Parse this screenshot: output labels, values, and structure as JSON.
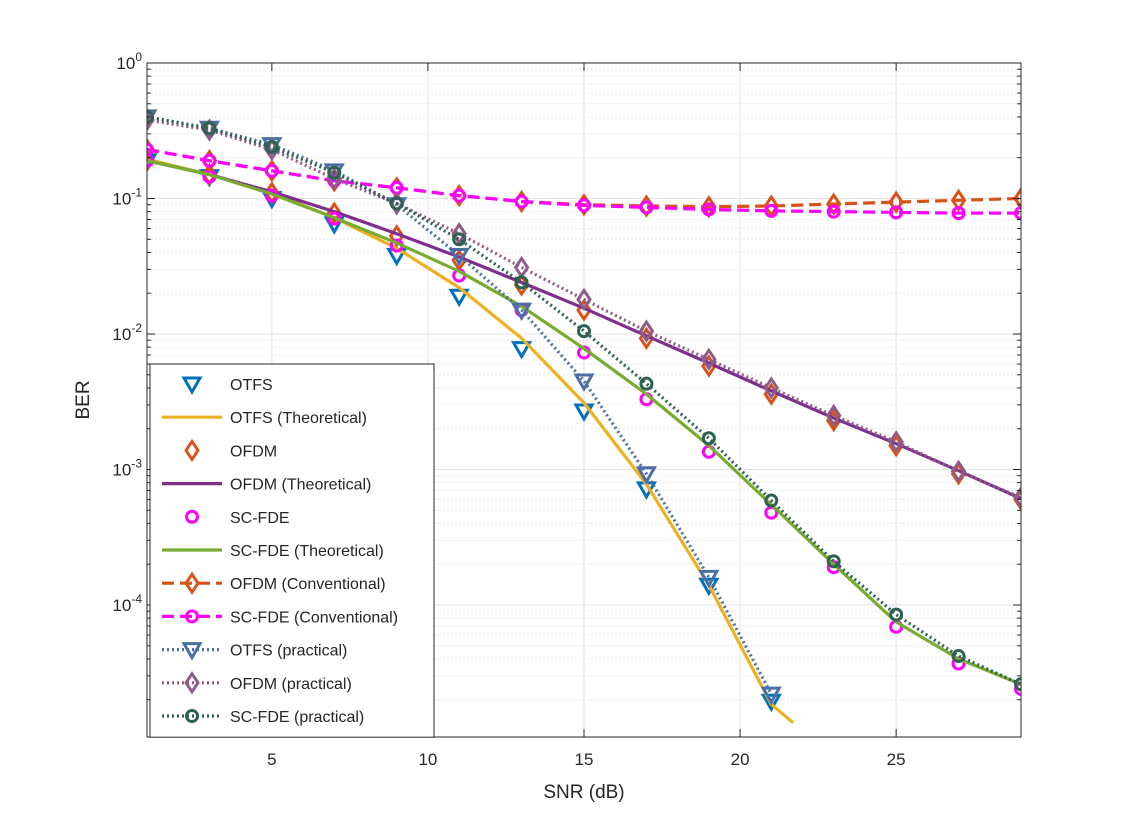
{
  "chart_data": {
    "type": "line",
    "title": "",
    "xlabel": "SNR (dB)",
    "ylabel": "BER",
    "yscale": "log",
    "xlim": [
      1,
      29
    ],
    "ylim_exponent": [
      -5,
      0
    ],
    "ylim": [
      1.35e-05,
      1
    ],
    "grid": true,
    "minor_grid": true,
    "legend_position": "bottom-left",
    "x_ticks": [
      5,
      10,
      15,
      20,
      25
    ],
    "y_ticks": [
      {
        "value": 1,
        "base": "10",
        "exp": "0"
      },
      {
        "value": 0.1,
        "base": "10",
        "exp": "-1"
      },
      {
        "value": 0.01,
        "base": "10",
        "exp": "-2"
      },
      {
        "value": 0.001,
        "base": "10",
        "exp": "-3"
      },
      {
        "value": 0.0001,
        "base": "10",
        "exp": "-4"
      }
    ],
    "series": [
      {
        "name": "OTFS",
        "color": "#0072BD",
        "line": "none",
        "marker": "triangle-down",
        "x": [
          1,
          3,
          5,
          7,
          9,
          11,
          13,
          15,
          17,
          19,
          21
        ],
        "y": [
          0.19,
          0.145,
          0.1,
          0.065,
          0.038,
          0.019,
          0.0078,
          0.0027,
          0.00072,
          0.00014,
          1.95e-05
        ]
      },
      {
        "name": "OTFS (Theoretical)",
        "color": "#EDB120",
        "line": "solid",
        "marker": "none",
        "x": [
          1,
          3,
          5,
          7,
          9,
          11,
          13,
          15,
          17,
          19,
          21,
          21.7
        ],
        "y": [
          0.195,
          0.15,
          0.11,
          0.072,
          0.043,
          0.022,
          0.0093,
          0.0031,
          0.00078,
          0.00014,
          1.85e-05,
          1.35e-05
        ]
      },
      {
        "name": "OFDM",
        "color": "#D95319",
        "line": "none",
        "marker": "diamond",
        "x": [
          1,
          3,
          5,
          7,
          9,
          11,
          13,
          15,
          17,
          19,
          21,
          23,
          25,
          27,
          29
        ],
        "y": [
          0.19,
          0.15,
          0.11,
          0.078,
          0.053,
          0.035,
          0.023,
          0.015,
          0.0093,
          0.0058,
          0.0036,
          0.0023,
          0.0015,
          0.00093,
          0.0006
        ]
      },
      {
        "name": "OFDM (Theoretical)",
        "color": "#7E2F8E",
        "line": "solid",
        "marker": "none",
        "x": [
          1,
          3,
          5,
          7,
          9,
          11,
          13,
          15,
          17,
          19,
          21,
          23,
          25,
          27,
          29
        ],
        "y": [
          0.19,
          0.15,
          0.112,
          0.08,
          0.055,
          0.037,
          0.024,
          0.0155,
          0.0097,
          0.0061,
          0.0038,
          0.0024,
          0.00155,
          0.00098,
          0.00061
        ]
      },
      {
        "name": "SC-FDE",
        "color": "#FF00FF",
        "line": "none",
        "marker": "circle",
        "x": [
          1,
          3,
          5,
          7,
          9,
          11,
          13,
          15,
          17,
          19,
          21,
          23,
          25,
          27,
          29
        ],
        "y": [
          0.19,
          0.145,
          0.105,
          0.071,
          0.045,
          0.027,
          0.015,
          0.0073,
          0.0033,
          0.00135,
          0.00048,
          0.00019,
          6.9e-05,
          3.7e-05,
          2.4e-05
        ]
      },
      {
        "name": "SC-FDE (Theoretical)",
        "color": "#77AC30",
        "line": "solid",
        "marker": "none",
        "x": [
          1,
          3,
          5,
          7,
          9,
          11,
          13,
          15,
          17,
          19,
          21,
          23,
          25,
          27,
          29
        ],
        "y": [
          0.19,
          0.15,
          0.108,
          0.072,
          0.047,
          0.029,
          0.016,
          0.0078,
          0.0036,
          0.0015,
          0.00055,
          0.0002,
          7.5e-05,
          4e-05,
          2.6e-05
        ]
      },
      {
        "name": "OFDM (Conventional)",
        "color": "#D95319",
        "line": "dashed",
        "marker": "diamond",
        "x": [
          1,
          3,
          5,
          7,
          9,
          11,
          13,
          15,
          17,
          19,
          21,
          23,
          25,
          27,
          29
        ],
        "y": [
          0.23,
          0.19,
          0.16,
          0.135,
          0.12,
          0.105,
          0.095,
          0.09,
          0.088,
          0.087,
          0.088,
          0.091,
          0.094,
          0.097,
          0.1
        ]
      },
      {
        "name": "SC-FDE (Conventional)",
        "color": "#FF00FF",
        "line": "dashed",
        "marker": "circle",
        "x": [
          1,
          3,
          5,
          7,
          9,
          11,
          13,
          15,
          17,
          19,
          21,
          23,
          25,
          27,
          29
        ],
        "y": [
          0.23,
          0.19,
          0.16,
          0.135,
          0.12,
          0.105,
          0.095,
          0.089,
          0.086,
          0.083,
          0.081,
          0.08,
          0.079,
          0.078,
          0.078
        ]
      },
      {
        "name": "OTFS (practical)",
        "color": "#4A6FA5",
        "line": "dotted",
        "marker": "triangle-down",
        "x": [
          1,
          3,
          5,
          7,
          9,
          11,
          13,
          15,
          17,
          19,
          21
        ],
        "y": [
          0.4,
          0.33,
          0.25,
          0.16,
          0.09,
          0.038,
          0.015,
          0.0045,
          0.00093,
          0.00016,
          2.2e-05
        ]
      },
      {
        "name": "OFDM (practical)",
        "color": "#8E5C86",
        "line": "dotted",
        "marker": "diamond",
        "x": [
          1,
          3,
          5,
          7,
          9,
          11,
          13,
          15,
          17,
          19,
          21,
          23,
          25,
          27,
          29
        ],
        "y": [
          0.38,
          0.32,
          0.23,
          0.14,
          0.092,
          0.055,
          0.031,
          0.018,
          0.0105,
          0.0065,
          0.004,
          0.0025,
          0.0016,
          0.00097,
          0.00062
        ]
      },
      {
        "name": "SC-FDE (practical)",
        "color": "#2E6150",
        "line": "dotted",
        "marker": "circle",
        "x": [
          1,
          3,
          5,
          7,
          9,
          11,
          13,
          15,
          17,
          19,
          21,
          23,
          25,
          27,
          29
        ],
        "y": [
          0.4,
          0.33,
          0.24,
          0.155,
          0.092,
          0.05,
          0.024,
          0.0105,
          0.0043,
          0.0017,
          0.00059,
          0.00021,
          8.5e-05,
          4.2e-05,
          2.6e-05
        ]
      }
    ]
  }
}
